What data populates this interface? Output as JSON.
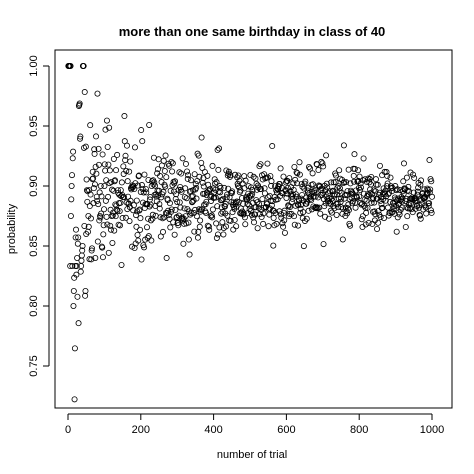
{
  "chart_data": {
    "type": "scatter",
    "title": "more than one same birthday in class of 40",
    "xlabel": "number of trial",
    "ylabel": "probability",
    "xlim": [
      0,
      1000
    ],
    "ylim": [
      0.72,
      1.0
    ],
    "xticks": [
      0,
      200,
      400,
      600,
      800,
      1000
    ],
    "yticks": [
      0.75,
      0.8,
      0.85,
      0.9,
      0.95,
      1.0
    ],
    "ytick_labels": [
      "0.75",
      "0.80",
      "0.85",
      "0.90",
      "0.95",
      "1.00"
    ],
    "grid": false,
    "marker": "open-circle",
    "limiting_value": 0.891,
    "series": [
      {
        "points": [
          [
            1,
            1.0
          ],
          [
            2,
            1.0
          ],
          [
            3,
            1.0
          ],
          [
            4,
            1.0
          ],
          [
            5,
            1.0
          ],
          [
            6,
            0.8333
          ],
          [
            7,
            1.0
          ],
          [
            8,
            0.875
          ],
          [
            9,
            0.8889
          ],
          [
            10,
            0.9
          ],
          [
            11,
            0.9091
          ],
          [
            12,
            0.8333
          ],
          [
            13,
            0.9231
          ],
          [
            14,
            0.9286
          ],
          [
            15,
            0.8
          ],
          [
            16,
            0.8125
          ],
          [
            17,
            0.8235
          ],
          [
            18,
            0.7222
          ],
          [
            19,
            0.7647
          ],
          [
            20,
            0.8333
          ],
          [
            21,
            0.8571
          ],
          [
            22,
            0.8636
          ],
          [
            23,
            0.8261
          ],
          [
            24,
            0.8333
          ],
          [
            25,
            0.84
          ],
          [
            26,
            0.8077
          ],
          [
            27,
            0.8519
          ],
          [
            28,
            0.8571
          ],
          [
            29,
            0.7857
          ],
          [
            30,
            0.9667
          ],
          [
            31,
            0.9677
          ],
          [
            32,
            0.9688
          ],
          [
            33,
            0.9394
          ],
          [
            34,
            0.9412
          ],
          [
            35,
            0.8286
          ],
          [
            36,
            0.8333
          ],
          [
            37,
            0.8378
          ],
          [
            38,
            0.8421
          ],
          [
            39,
            0.8462
          ],
          [
            40,
            0.85
          ],
          [
            41,
            1.0
          ],
          [
            42,
            1.0
          ],
          [
            43,
            1.0
          ],
          [
            44,
            0.9318
          ],
          [
            45,
            0.8667
          ],
          [
            46,
            0.9783
          ],
          [
            47,
            0.8085
          ],
          [
            48,
            0.8125
          ],
          [
            50,
            0.86
          ],
          [
            53,
            0.8868
          ],
          [
            56,
            0.875
          ],
          [
            58,
            0.8966
          ],
          [
            60,
            0.8833
          ],
          [
            63,
            0.873
          ],
          [
            65,
            0.8462
          ],
          [
            68,
            0.9118
          ],
          [
            70,
            0.8857
          ],
          [
            72,
            0.9306
          ],
          [
            75,
            0.84
          ],
          [
            78,
            0.9103
          ],
          [
            80,
            0.8875
          ],
          [
            82,
            0.8537
          ],
          [
            85,
            0.9176
          ],
          [
            88,
            0.875
          ],
          [
            90,
            0.9
          ],
          [
            93,
            0.8495
          ],
          [
            95,
            0.9263
          ],
          [
            98,
            0.8673
          ],
          [
            100,
            0.9
          ],
          [
            105,
            0.9048
          ],
          [
            110,
            0.8909
          ],
          [
            115,
            0.913
          ],
          [
            120,
            0.875
          ],
          [
            125,
            0.896
          ],
          [
            130,
            0.8846
          ],
          [
            135,
            0.9259
          ],
          [
            140,
            0.8857
          ],
          [
            145,
            0.8966
          ],
          [
            150,
            0.8733
          ],
          [
            160,
            0.9125
          ],
          [
            170,
            0.8824
          ],
          [
            180,
            0.9
          ],
          [
            190,
            0.8789
          ],
          [
            200,
            0.895
          ],
          [
            210,
            0.9095
          ],
          [
            220,
            0.8727
          ],
          [
            230,
            0.9
          ],
          [
            240,
            0.8833
          ],
          [
            250,
            0.896
          ],
          [
            260,
            0.8731
          ],
          [
            270,
            0.9074
          ],
          [
            280,
            0.8857
          ],
          [
            290,
            0.9034
          ],
          [
            300,
            0.8867
          ],
          [
            310,
            0.8968
          ],
          [
            320,
            0.8813
          ],
          [
            330,
            0.9091
          ],
          [
            340,
            0.8912
          ],
          [
            350,
            0.8971
          ],
          [
            360,
            0.8806
          ],
          [
            370,
            0.9027
          ],
          [
            380,
            0.8868
          ],
          [
            390,
            0.8974
          ],
          [
            400,
            0.89
          ],
          [
            420,
            0.8881
          ],
          [
            440,
            0.8977
          ],
          [
            460,
            0.8848
          ],
          [
            480,
            0.9021
          ],
          [
            500,
            0.892
          ],
          [
            520,
            0.8865
          ],
          [
            540,
            0.8981
          ],
          [
            560,
            0.8839
          ],
          [
            580,
            0.9017
          ],
          [
            600,
            0.89
          ],
          [
            620,
            0.8968
          ],
          [
            640,
            0.8844
          ],
          [
            660,
            0.8985
          ],
          [
            680,
            0.8912
          ],
          [
            700,
            0.8943
          ],
          [
            720,
            0.8861
          ],
          [
            740,
            0.8986
          ],
          [
            760,
            0.8895
          ],
          [
            780,
            0.8949
          ],
          [
            800,
            0.8913
          ],
          [
            820,
            0.8878
          ],
          [
            840,
            0.8964
          ],
          [
            860,
            0.8907
          ],
          [
            880,
            0.8932
          ],
          [
            900,
            0.8889
          ],
          [
            920,
            0.8957
          ],
          [
            940,
            0.8894
          ],
          [
            960,
            0.8927
          ],
          [
            980,
            0.8898
          ],
          [
            1000,
            0.891
          ]
        ]
      }
    ]
  }
}
